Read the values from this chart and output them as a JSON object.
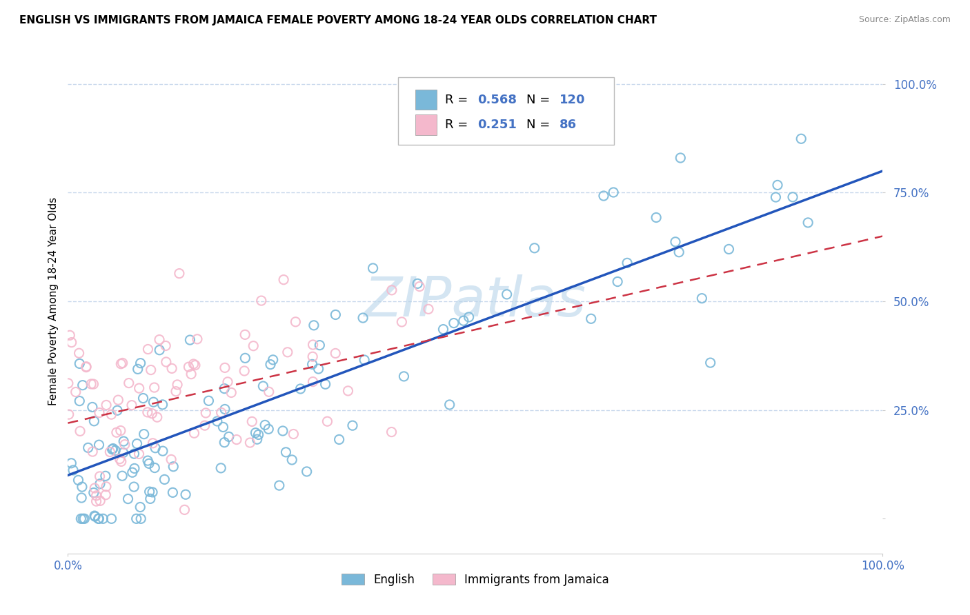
{
  "title": "ENGLISH VS IMMIGRANTS FROM JAMAICA FEMALE POVERTY AMONG 18-24 YEAR OLDS CORRELATION CHART",
  "source": "Source: ZipAtlas.com",
  "ylabel": "Female Poverty Among 18-24 Year Olds",
  "xlim": [
    0,
    1
  ],
  "ylim": [
    -0.08,
    1.08
  ],
  "yticks": [
    0.0,
    0.25,
    0.5,
    0.75,
    1.0
  ],
  "ytick_labels": [
    "",
    "25.0%",
    "50.0%",
    "75.0%",
    "100.0%"
  ],
  "xticks": [
    0,
    1
  ],
  "xtick_labels": [
    "0.0%",
    "100.0%"
  ],
  "english_R": 0.568,
  "english_N": 120,
  "jamaica_R": 0.251,
  "jamaica_N": 86,
  "english_color": "#7ab8d9",
  "english_edge_color": "#5a9ec9",
  "jamaica_color": "#f4b8cc",
  "jamaica_edge_color": "#e890aa",
  "english_line_color": "#2255bb",
  "jamaica_line_color": "#cc3344",
  "watermark": "ZIPatlas",
  "watermark_color": "#b8d4ea",
  "legend_labels": [
    "English",
    "Immigrants from Jamaica"
  ],
  "title_fontsize": 11,
  "tick_color": "#4472c4",
  "grid_color": "#c8d8ec",
  "legend_text_color": "#4472c4",
  "en_trend_start": 0.1,
  "en_trend_end": 0.8,
  "ja_trend_start": 0.22,
  "ja_trend_end": 0.65
}
